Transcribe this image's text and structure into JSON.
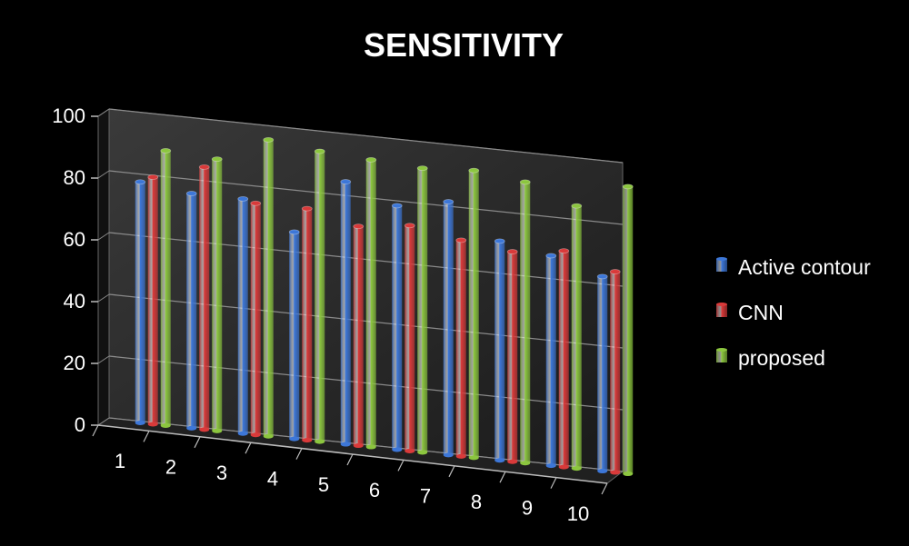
{
  "chart_data": {
    "type": "bar",
    "title": "SENSITIVITY",
    "xlabel": "",
    "ylabel": "",
    "categories": [
      "1",
      "2",
      "3",
      "4",
      "5",
      "6",
      "7",
      "8",
      "9",
      "10"
    ],
    "ylim": [
      0,
      100
    ],
    "yticks": [
      0,
      20,
      40,
      60,
      80,
      100
    ],
    "grid": true,
    "view": "3d-clustered-cylinder",
    "legend_position": "right",
    "series": [
      {
        "name": "Active contour",
        "color": "#3d77d8",
        "values": [
          78,
          76,
          76,
          67,
          85,
          79,
          82,
          71,
          68,
          63
        ]
      },
      {
        "name": "CNN",
        "color": "#d93a3a",
        "values": [
          80,
          85,
          75,
          75,
          71,
          73,
          70,
          68,
          70,
          65
        ]
      },
      {
        "name": "proposed",
        "color": "#8cc63f",
        "values": [
          89,
          88,
          96,
          94,
          93,
          92,
          93,
          91,
          85,
          93
        ]
      }
    ]
  }
}
